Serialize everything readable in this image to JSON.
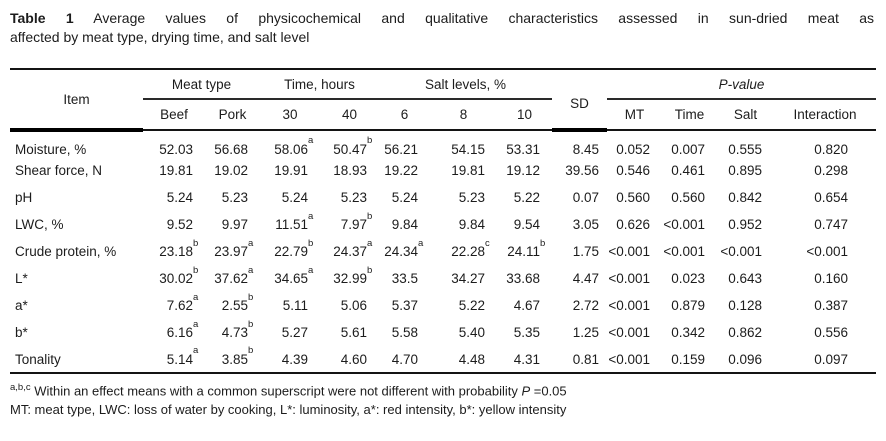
{
  "caption": {
    "label": "Table 1",
    "line1": "Average values of physicochemical and qualitative characteristics assessed in sun-dried meat as",
    "line2": "affected by meat type, drying time, and salt level"
  },
  "table": {
    "group_headers": {
      "item": "Item",
      "meat_type": "Meat type",
      "time": "Time, hours",
      "salt": "Salt levels, %",
      "sd": "SD",
      "p_value": "P-value"
    },
    "sub_headers": {
      "beef": "Beef",
      "pork": "Pork",
      "t30": "30",
      "t40": "40",
      "s6": "6",
      "s8": "8",
      "s10": "10",
      "mt": "MT",
      "time": "Time",
      "salt": "Salt",
      "interaction": "Interaction"
    },
    "rows": [
      {
        "item": "Moisture, %",
        "values": [
          "52.03",
          "56.68",
          "58.06^a",
          "50.47^b",
          "56.21",
          "54.15",
          "53.31",
          "8.45",
          "0.052",
          "0.007",
          "0.555",
          "0.820"
        ]
      },
      {
        "item": "Shear force, N",
        "values": [
          "19.81",
          "19.02",
          "19.91",
          "18.93",
          "19.22",
          "19.81",
          "19.12",
          "39.56",
          "0.546",
          "0.461",
          "0.895",
          "0.298"
        ]
      },
      {
        "item": "pH",
        "values": [
          "5.24",
          "5.23",
          "5.24",
          "5.23",
          "5.24",
          "5.23",
          "5.22",
          "0.07",
          "0.560",
          "0.560",
          "0.842",
          "0.654"
        ]
      },
      {
        "item": "LWC, %",
        "values": [
          "9.52",
          "9.97",
          "11.51^a",
          "7.97^b",
          "9.84",
          "9.84",
          "9.54",
          "3.05",
          "0.626",
          "<0.001",
          "0.952",
          "0.747"
        ]
      },
      {
        "item": "Crude protein, %",
        "values": [
          "23.18^b",
          "23.97^a",
          "22.79^b",
          "24.37^a",
          "24.34^a",
          "22.28^c",
          "24.11^b",
          "1.75",
          "<0.001",
          "<0.001",
          "<0.001",
          "<0.001"
        ]
      },
      {
        "item": "L*",
        "values": [
          "30.02^b",
          "37.62^a",
          "34.65^a",
          "32.99^b",
          "33.5",
          "34.27",
          "33.68",
          "4.47",
          "<0.001",
          "0.023",
          "0.643",
          "0.160"
        ]
      },
      {
        "item": "a*",
        "values": [
          "7.62^a",
          "2.55^b",
          "5.11",
          "5.06",
          "5.37",
          "5.22",
          "4.67",
          "2.72",
          "<0.001",
          "0.879",
          "0.128",
          "0.387"
        ]
      },
      {
        "item": "b*",
        "values": [
          "6.16^a",
          "4.73^b",
          "5.27",
          "5.61",
          "5.58",
          "5.40",
          "5.35",
          "1.25",
          "<0.001",
          "0.342",
          "0.862",
          "0.556"
        ]
      },
      {
        "item": "Tonality",
        "values": [
          "5.14^a",
          "3.85^b",
          "4.39",
          "4.60",
          "4.70",
          "4.48",
          "4.31",
          "0.81",
          "<0.001",
          "0.159",
          "0.096",
          "0.097"
        ]
      }
    ]
  },
  "footnotes": {
    "sup_marks": "a,b,c",
    "line1_text": " Within an effect means with a common superscript were not different with probability ",
    "line1_p": "P",
    "line1_tail": " =0.05",
    "line2": "MT: meat type, LWC: loss of water by cooking, L*: luminosity, a*: red intensity, b*: yellow intensity"
  }
}
